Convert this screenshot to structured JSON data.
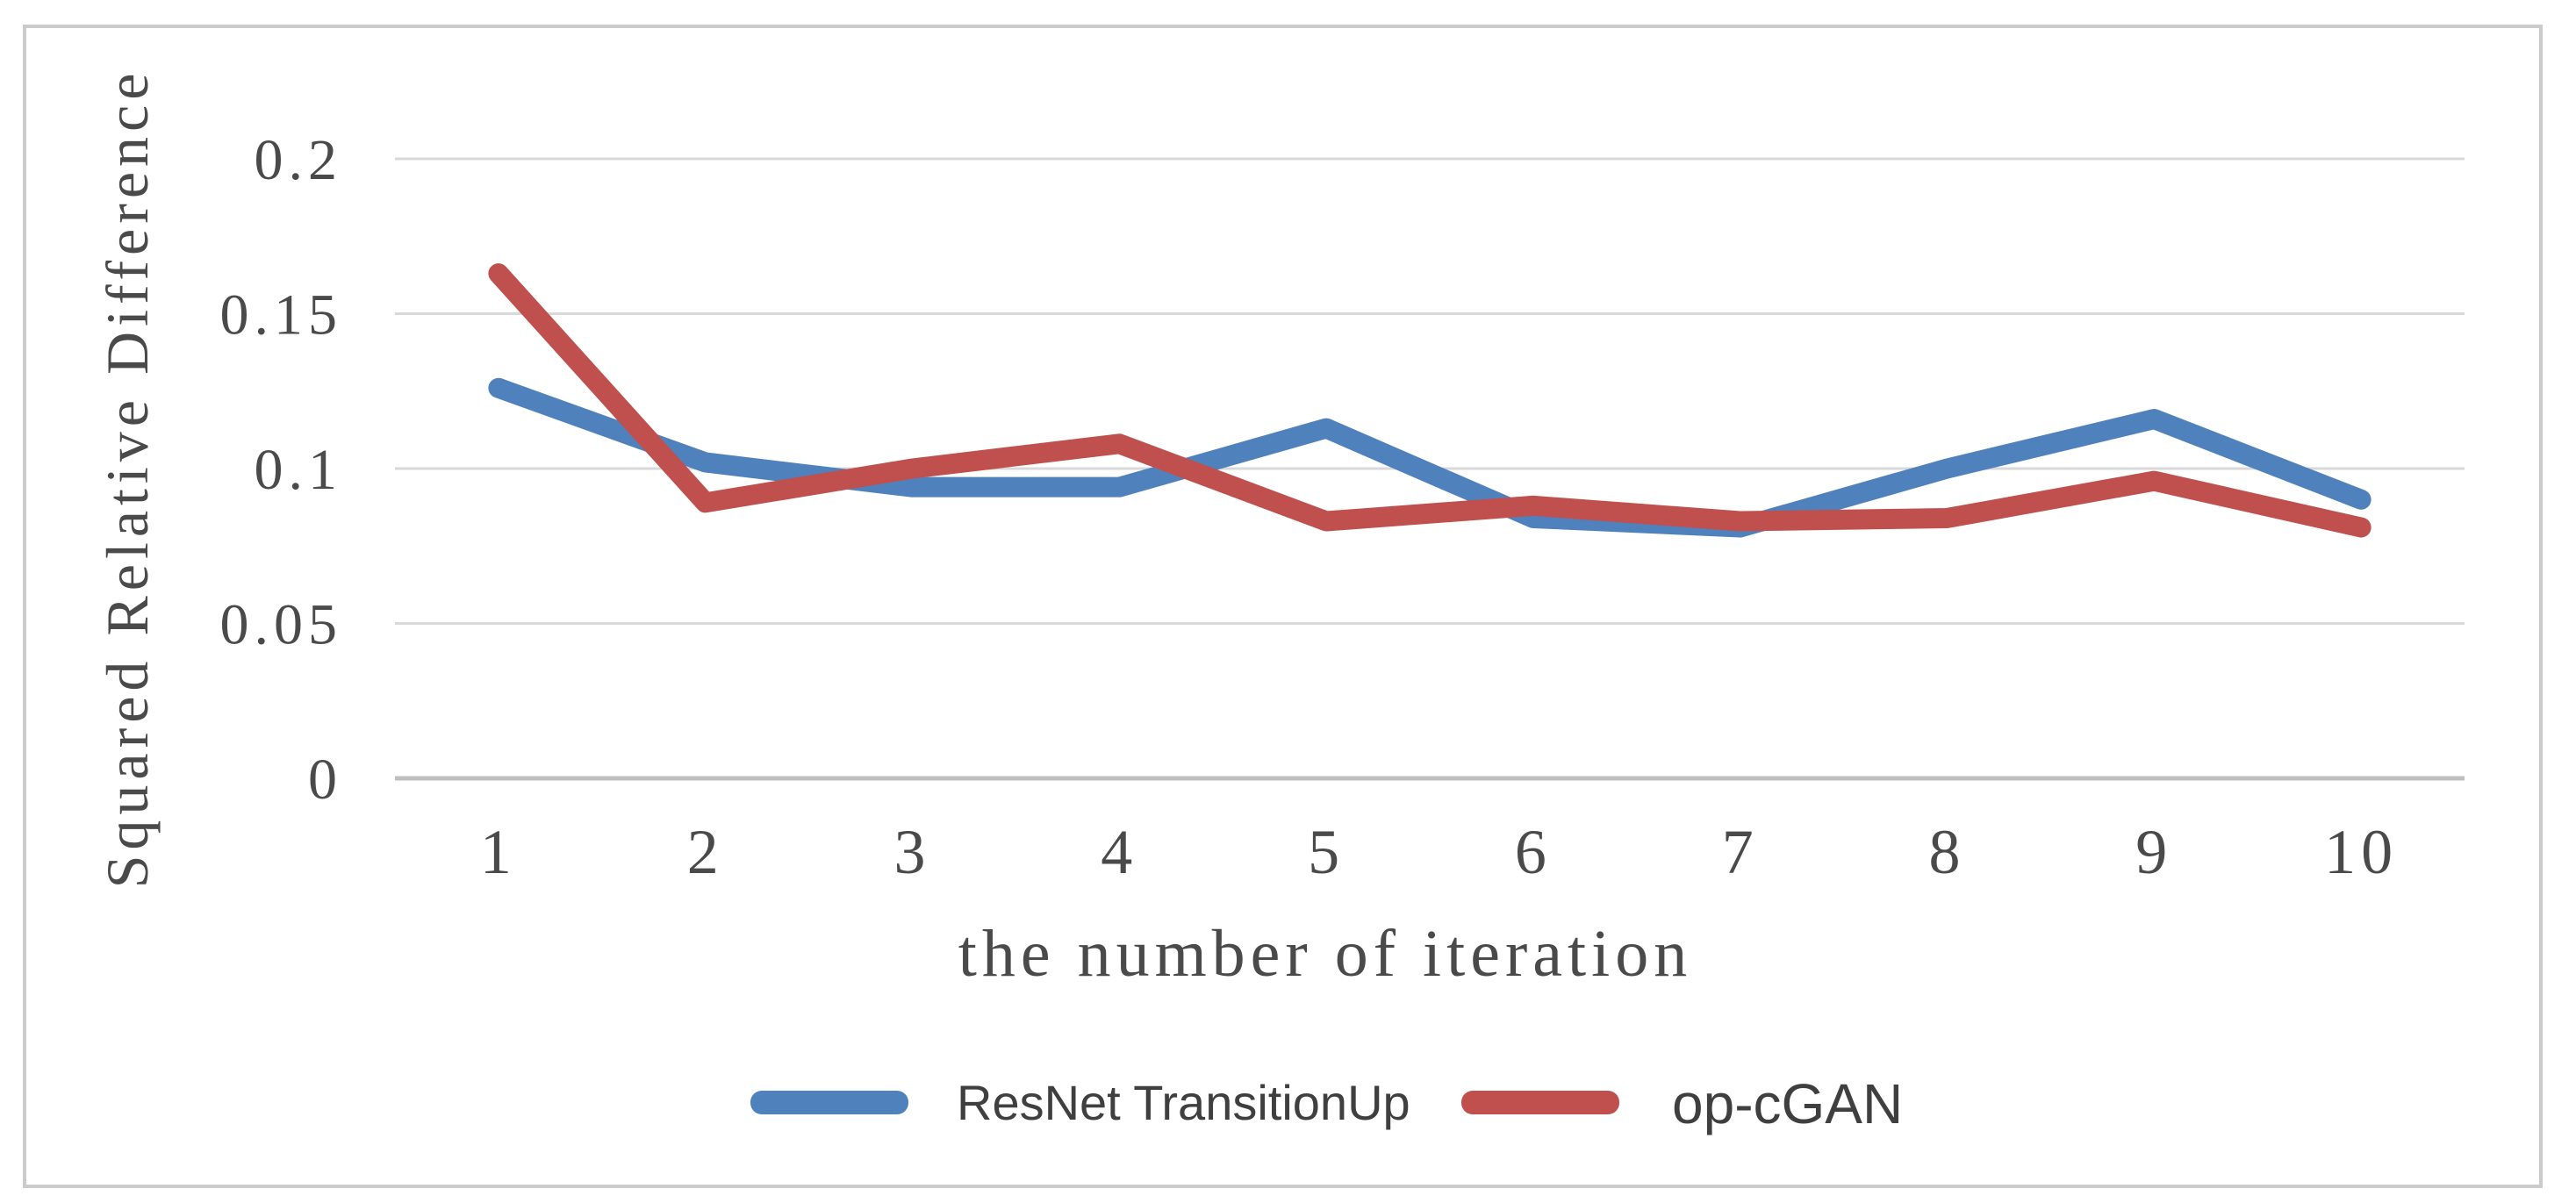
{
  "chart_data": {
    "type": "line",
    "title": "",
    "xlabel": "the number of iteration",
    "ylabel": "Squared Relative Difference",
    "categories": [
      "1",
      "2",
      "3",
      "4",
      "5",
      "6",
      "7",
      "8",
      "9",
      "10"
    ],
    "series": [
      {
        "name": "ResNet TransitionUp",
        "color": "#4F81BD",
        "values": [
          0.126,
          0.102,
          0.094,
          0.094,
          0.113,
          0.084,
          0.081,
          0.1,
          0.116,
          0.09
        ]
      },
      {
        "name": "op-cGAN",
        "color": "#C0504D",
        "values": [
          0.163,
          0.089,
          0.1,
          0.108,
          0.083,
          0.088,
          0.083,
          0.084,
          0.096,
          0.081
        ]
      }
    ],
    "y_ticks": [
      {
        "label": "0",
        "value": 0
      },
      {
        "label": "0.05",
        "value": 0.05
      },
      {
        "label": "0.1",
        "value": 0.1
      },
      {
        "label": "0.15",
        "value": 0.15
      },
      {
        "label": "0.2",
        "value": 0.2
      }
    ],
    "ylim": [
      0,
      0.22
    ],
    "grid": "horizontal",
    "legend_position": "bottom-center"
  },
  "style": {
    "series_blue": "#4F81BD",
    "series_red": "#C0504D",
    "gridline_color": "#D9D9D9",
    "zero_axis_color": "#BFBFBF",
    "text_color": "#4A4A4A",
    "legend_text_color": "#3F3F3F",
    "border_color": "#CBCBCB",
    "background": "#FFFFFF"
  }
}
